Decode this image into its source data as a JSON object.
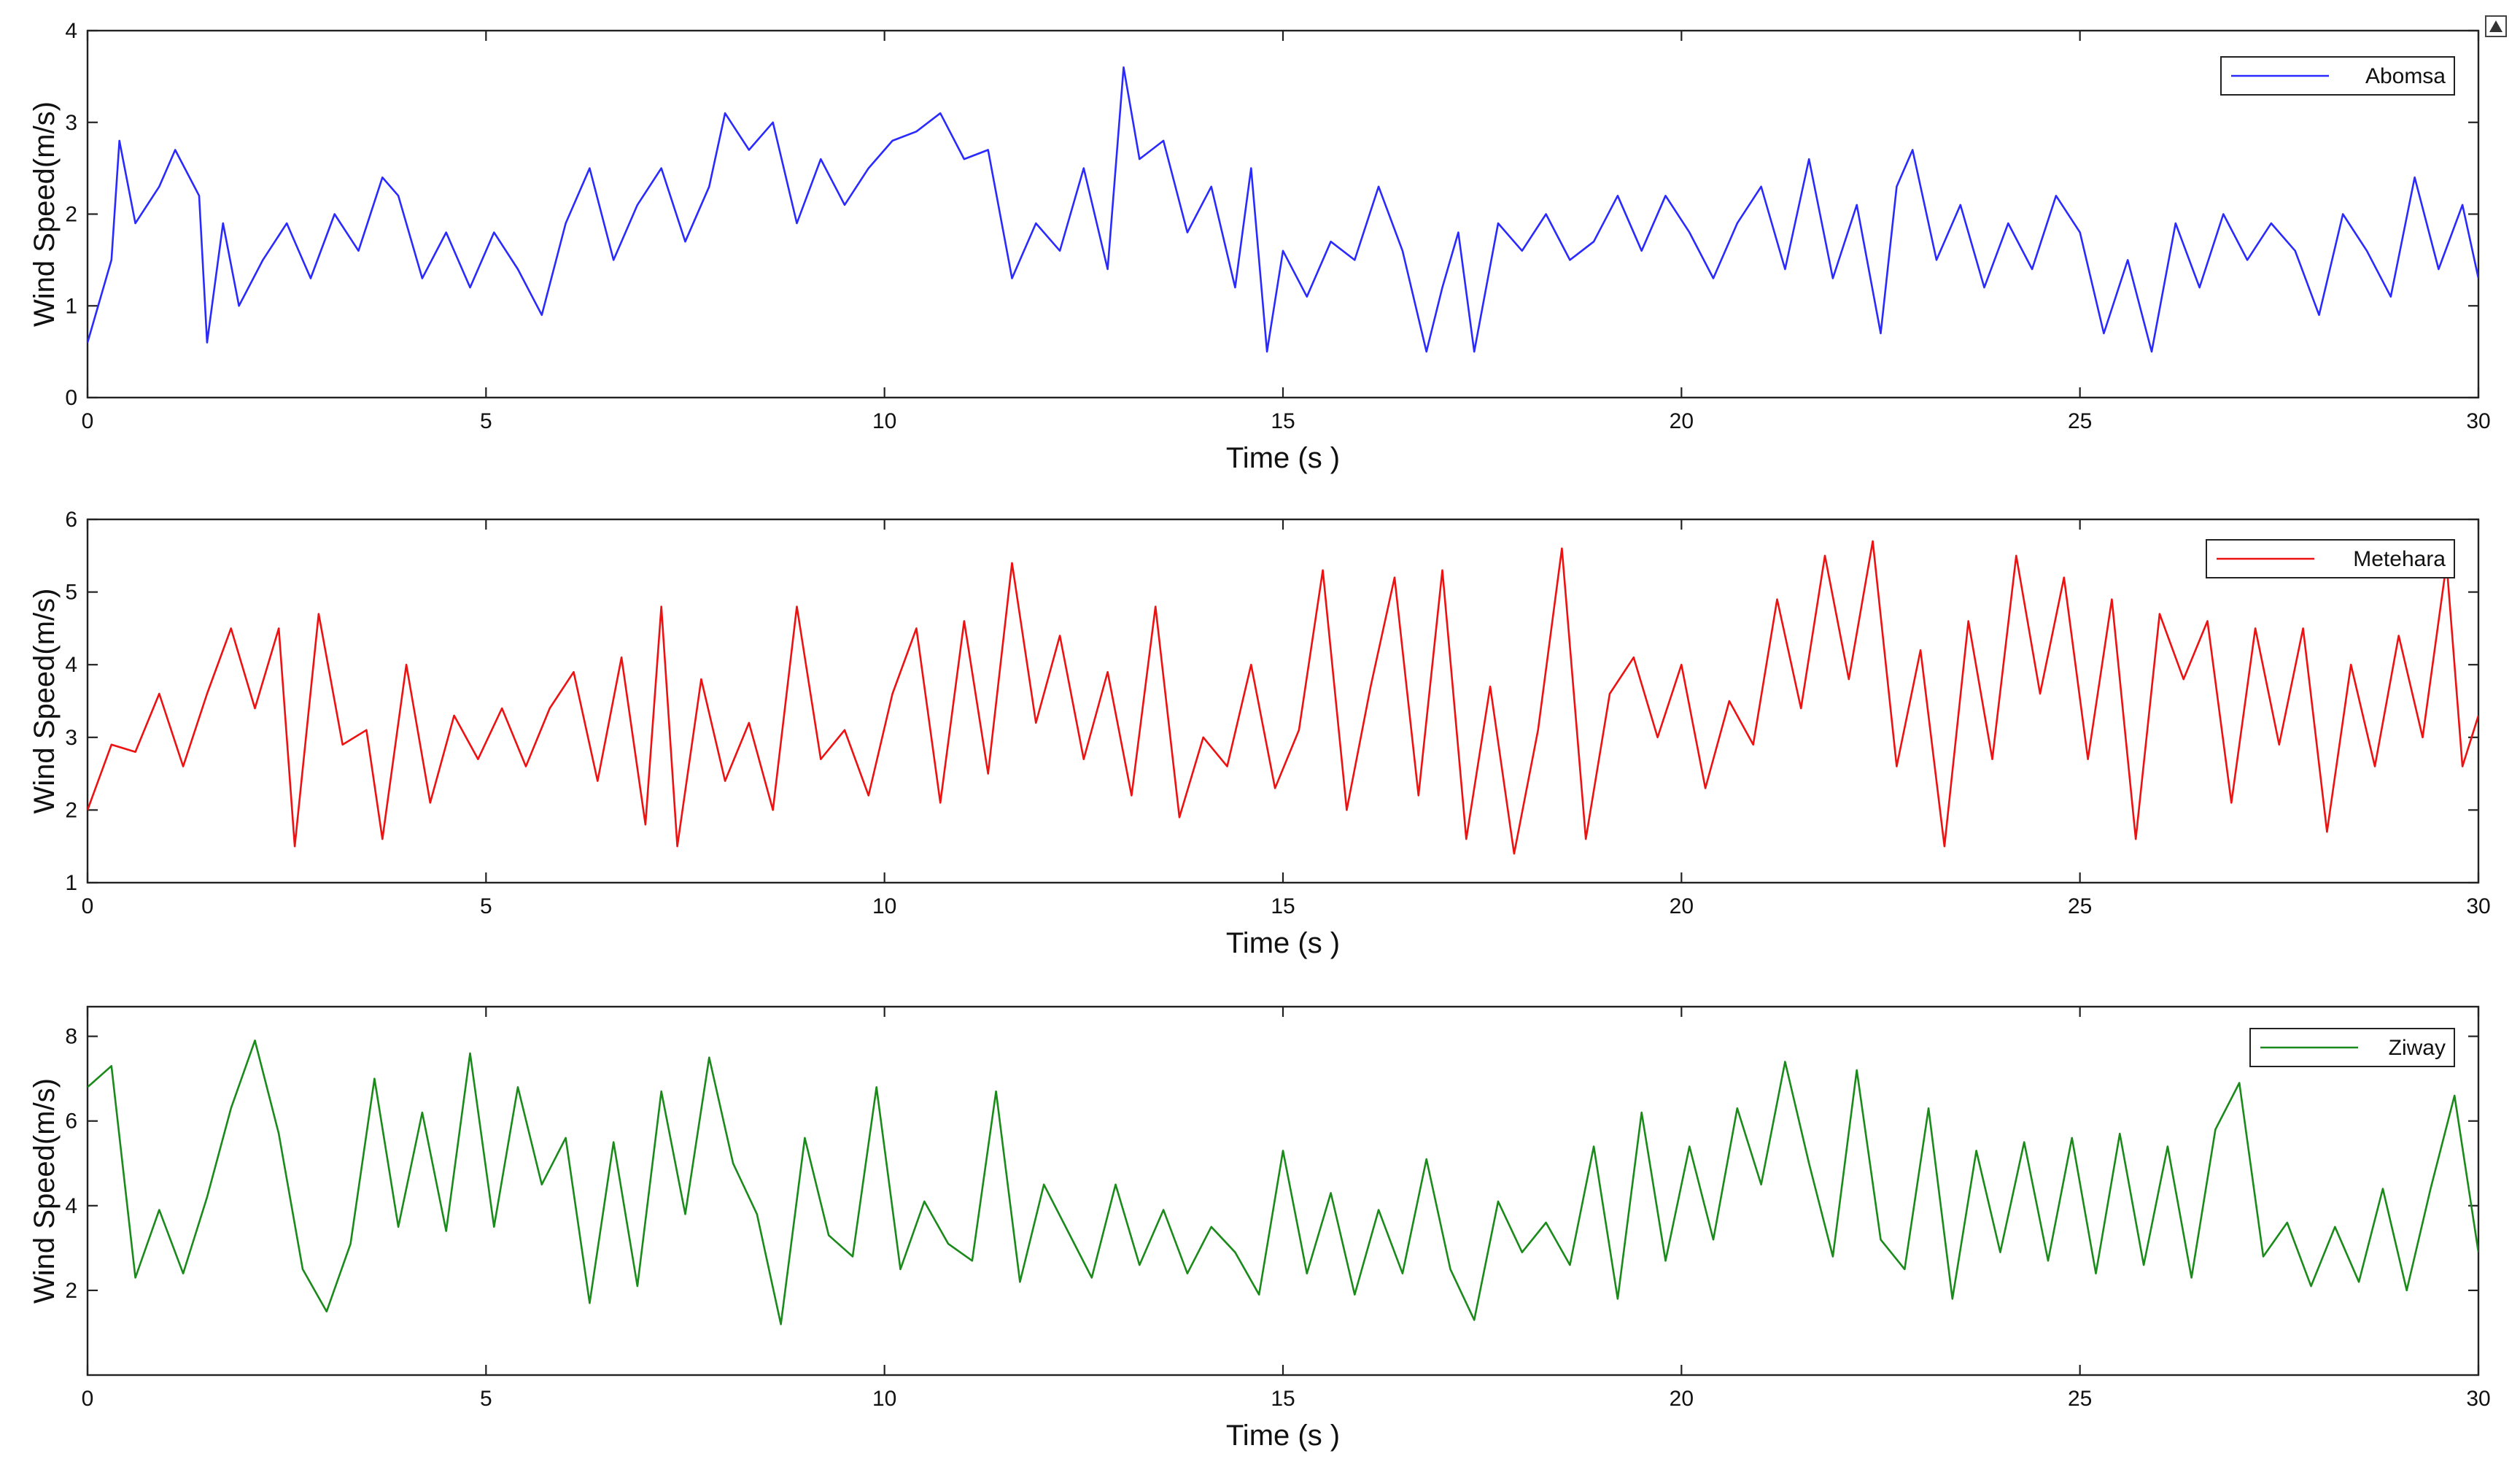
{
  "chart_data": [
    {
      "type": "line",
      "xlabel": "Time (s )",
      "ylabel": "Wind Speed(m/s)",
      "xlim": [
        0,
        30
      ],
      "ylim": [
        0,
        4
      ],
      "xticks": [
        "0",
        "5",
        "10",
        "15",
        "20",
        "25",
        "30"
      ],
      "yticks": [
        "0",
        "1",
        "2",
        "3",
        "4"
      ],
      "legend_position": "top-right",
      "series": [
        {
          "name": "Abomsa",
          "color": "#2a2aff",
          "x": [
            0,
            0.3,
            0.4,
            0.6,
            0.9,
            1.1,
            1.4,
            1.5,
            1.7,
            1.9,
            2.2,
            2.5,
            2.8,
            3.1,
            3.4,
            3.7,
            3.9,
            4.2,
            4.5,
            4.8,
            5.1,
            5.4,
            5.7,
            6,
            6.3,
            6.6,
            6.9,
            7.2,
            7.5,
            7.8,
            8,
            8.3,
            8.6,
            8.9,
            9.2,
            9.5,
            9.8,
            10.1,
            10.4,
            10.7,
            11,
            11.3,
            11.6,
            11.9,
            12.2,
            12.5,
            12.8,
            13,
            13.2,
            13.5,
            13.8,
            14.1,
            14.4,
            14.6,
            14.8,
            15,
            15.3,
            15.6,
            15.9,
            16.2,
            16.5,
            16.8,
            17,
            17.2,
            17.4,
            17.7,
            18,
            18.3,
            18.6,
            18.9,
            19.2,
            19.5,
            19.8,
            20.1,
            20.4,
            20.7,
            21,
            21.3,
            21.6,
            21.9,
            22.2,
            22.5,
            22.7,
            22.9,
            23.2,
            23.5,
            23.8,
            24.1,
            24.4,
            24.7,
            25,
            25.3,
            25.6,
            25.9,
            26.2,
            26.5,
            26.8,
            27.1,
            27.4,
            27.7,
            28,
            28.3,
            28.6,
            28.9,
            29.2,
            29.5,
            29.8,
            30
          ],
          "values": [
            0.6,
            1.5,
            2.8,
            1.9,
            2.3,
            2.7,
            2.2,
            0.6,
            1.9,
            1,
            1.5,
            1.9,
            1.3,
            2,
            1.6,
            2.4,
            2.2,
            1.3,
            1.8,
            1.2,
            1.8,
            1.4,
            0.9,
            1.9,
            2.5,
            1.5,
            2.1,
            2.5,
            1.7,
            2.3,
            3.1,
            2.7,
            3,
            1.9,
            2.6,
            2.1,
            2.5,
            2.8,
            2.9,
            3.1,
            2.6,
            2.7,
            1.3,
            1.9,
            1.6,
            2.5,
            1.4,
            3.6,
            2.6,
            2.8,
            1.8,
            2.3,
            1.2,
            2.5,
            0.5,
            1.6,
            1.1,
            1.7,
            1.5,
            2.3,
            1.6,
            0.5,
            1.2,
            1.8,
            0.5,
            1.9,
            1.6,
            2,
            1.5,
            1.7,
            2.2,
            1.6,
            2.2,
            1.8,
            1.3,
            1.9,
            2.3,
            1.4,
            2.6,
            1.3,
            2.1,
            0.7,
            2.3,
            2.7,
            1.5,
            2.1,
            1.2,
            1.9,
            1.4,
            2.2,
            1.8,
            0.7,
            1.5,
            0.5,
            1.9,
            1.2,
            2,
            1.5,
            1.9,
            1.6,
            0.9,
            2,
            1.6,
            1.1,
            2.4,
            1.4,
            2.1,
            1.3
          ]
        }
      ]
    },
    {
      "type": "line",
      "xlabel": "Time (s )",
      "ylabel": "Wind Speed(m/s)",
      "xlim": [
        0,
        30
      ],
      "ylim": [
        1,
        6
      ],
      "xticks": [
        "0",
        "5",
        "10",
        "15",
        "20",
        "25",
        "30"
      ],
      "yticks": [
        "1",
        "2",
        "3",
        "4",
        "5",
        "6"
      ],
      "legend_position": "top-right",
      "series": [
        {
          "name": "Metehara",
          "color": "#ee1111",
          "x": [
            0,
            0.3,
            0.6,
            0.9,
            1.2,
            1.5,
            1.8,
            2.1,
            2.4,
            2.6,
            2.9,
            3.2,
            3.5,
            3.7,
            4,
            4.3,
            4.6,
            4.9,
            5.2,
            5.5,
            5.8,
            6.1,
            6.4,
            6.7,
            7,
            7.2,
            7.4,
            7.7,
            8,
            8.3,
            8.6,
            8.9,
            9.2,
            9.5,
            9.8,
            10.1,
            10.4,
            10.7,
            11,
            11.3,
            11.6,
            11.9,
            12.2,
            12.5,
            12.8,
            13.1,
            13.4,
            13.7,
            14,
            14.3,
            14.6,
            14.9,
            15.2,
            15.5,
            15.8,
            16.1,
            16.4,
            16.7,
            17,
            17.3,
            17.6,
            17.9,
            18.2,
            18.5,
            18.8,
            19.1,
            19.4,
            19.7,
            20,
            20.3,
            20.6,
            20.9,
            21.2,
            21.5,
            21.8,
            22.1,
            22.4,
            22.7,
            23,
            23.3,
            23.6,
            23.9,
            24.2,
            24.5,
            24.8,
            25.1,
            25.4,
            25.7,
            26,
            26.3,
            26.6,
            26.9,
            27.2,
            27.5,
            27.8,
            28.1,
            28.4,
            28.7,
            29,
            29.3,
            29.6,
            29.8,
            30
          ],
          "values": [
            2,
            2.9,
            2.8,
            3.6,
            2.6,
            3.6,
            4.5,
            3.4,
            4.5,
            1.5,
            4.7,
            2.9,
            3.1,
            1.6,
            4,
            2.1,
            3.3,
            2.7,
            3.4,
            2.6,
            3.4,
            3.9,
            2.4,
            4.1,
            1.8,
            4.8,
            1.5,
            3.8,
            2.4,
            3.2,
            2,
            4.8,
            2.7,
            3.1,
            2.2,
            3.6,
            4.5,
            2.1,
            4.6,
            2.5,
            5.4,
            3.2,
            4.4,
            2.7,
            3.9,
            2.2,
            4.8,
            1.9,
            3,
            2.6,
            4,
            2.3,
            3.1,
            5.3,
            2,
            3.7,
            5.2,
            2.2,
            5.3,
            1.6,
            3.7,
            1.4,
            3.1,
            5.6,
            1.6,
            3.6,
            4.1,
            3,
            4,
            2.3,
            3.5,
            2.9,
            4.9,
            3.4,
            5.5,
            3.8,
            5.7,
            2.6,
            4.2,
            1.5,
            4.6,
            2.7,
            5.5,
            3.6,
            5.2,
            2.7,
            4.9,
            1.6,
            4.7,
            3.8,
            4.6,
            2.1,
            4.5,
            2.9,
            4.5,
            1.7,
            4,
            2.6,
            4.4,
            3,
            5.4,
            2.6,
            3.3
          ]
        }
      ]
    },
    {
      "type": "line",
      "xlabel": "Time (s )",
      "ylabel": "Wind Speed(m/s)",
      "xlim": [
        0,
        30
      ],
      "ylim": [
        0,
        8.7
      ],
      "xticks": [
        "0",
        "5",
        "10",
        "15",
        "20",
        "25",
        "30"
      ],
      "yticks": [
        "2",
        "4",
        "6",
        "8"
      ],
      "legend_position": "top-right",
      "series": [
        {
          "name": "Ziway",
          "color": "#1a8a1a",
          "x": [
            0,
            0.3,
            0.6,
            0.9,
            1.2,
            1.5,
            1.8,
            2.1,
            2.4,
            2.7,
            3,
            3.3,
            3.6,
            3.9,
            4.2,
            4.5,
            4.8,
            5.1,
            5.4,
            5.7,
            6,
            6.3,
            6.6,
            6.9,
            7.2,
            7.5,
            7.8,
            8.1,
            8.4,
            8.7,
            9,
            9.3,
            9.6,
            9.9,
            10.2,
            10.5,
            10.8,
            11.1,
            11.4,
            11.7,
            12,
            12.3,
            12.6,
            12.9,
            13.2,
            13.5,
            13.8,
            14.1,
            14.4,
            14.7,
            15,
            15.3,
            15.6,
            15.9,
            16.2,
            16.5,
            16.8,
            17.1,
            17.4,
            17.7,
            18,
            18.3,
            18.6,
            18.9,
            19.2,
            19.5,
            19.8,
            20.1,
            20.4,
            20.7,
            21,
            21.3,
            21.6,
            21.9,
            22.2,
            22.5,
            22.8,
            23.1,
            23.4,
            23.7,
            24,
            24.3,
            24.6,
            24.9,
            25.2,
            25.5,
            25.8,
            26.1,
            26.4,
            26.7,
            27,
            27.3,
            27.6,
            27.9,
            28.2,
            28.5,
            28.8,
            29.1,
            29.4,
            29.7,
            30
          ],
          "values": [
            6.8,
            7.3,
            2.3,
            3.9,
            2.4,
            4.2,
            6.3,
            7.9,
            5.7,
            2.5,
            1.5,
            3.1,
            7,
            3.5,
            6.2,
            3.4,
            7.6,
            3.5,
            6.8,
            4.5,
            5.6,
            1.7,
            5.5,
            2.1,
            6.7,
            3.8,
            7.5,
            5,
            3.8,
            1.2,
            5.6,
            3.3,
            2.8,
            6.8,
            2.5,
            4.1,
            3.1,
            2.7,
            6.7,
            2.2,
            4.5,
            3.4,
            2.3,
            4.5,
            2.6,
            3.9,
            2.4,
            3.5,
            2.9,
            1.9,
            5.3,
            2.4,
            4.3,
            1.9,
            3.9,
            2.4,
            5.1,
            2.5,
            1.3,
            4.1,
            2.9,
            3.6,
            2.6,
            5.4,
            1.8,
            6.2,
            2.7,
            5.4,
            3.2,
            6.3,
            4.5,
            7.4,
            5,
            2.8,
            7.2,
            3.2,
            2.5,
            6.3,
            1.8,
            5.3,
            2.9,
            5.5,
            2.7,
            5.6,
            2.4,
            5.7,
            2.6,
            5.4,
            2.3,
            5.8,
            6.9,
            2.8,
            3.6,
            2.1,
            3.5,
            2.2,
            4.4,
            2,
            4.4,
            6.6,
            2.9
          ]
        }
      ]
    }
  ]
}
